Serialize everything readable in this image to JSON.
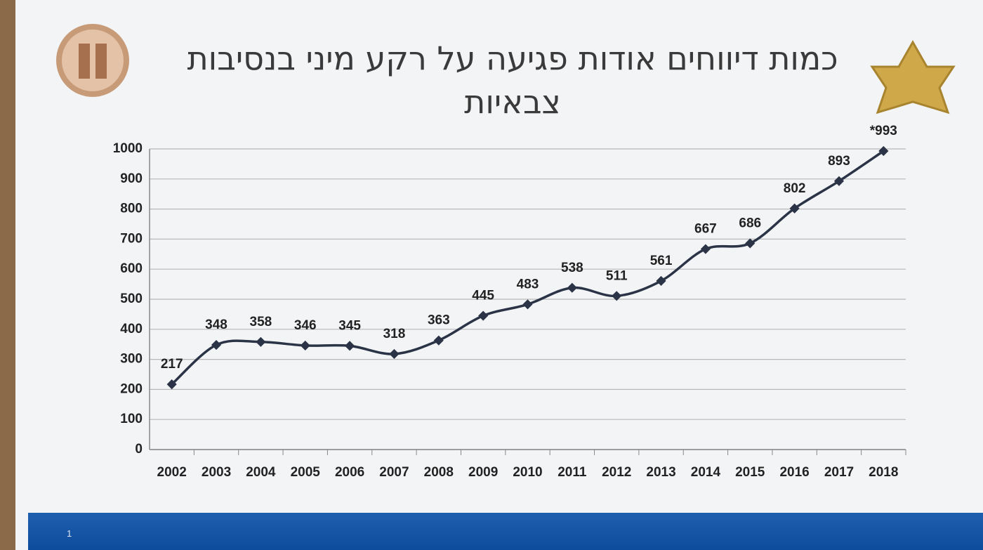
{
  "chart_data": {
    "type": "line",
    "title": "כמות דיווחים אודות פגיעה על רקע מיני בנסיבות צבאיות",
    "categories": [
      "2002",
      "2003",
      "2004",
      "2005",
      "2006",
      "2007",
      "2008",
      "2009",
      "2010",
      "2011",
      "2012",
      "2013",
      "2014",
      "2015",
      "2016",
      "2017",
      "2018"
    ],
    "series": [
      {
        "color": "#2b3446",
        "values": [
          217,
          348,
          358,
          346,
          345,
          318,
          363,
          445,
          483,
          538,
          511,
          561,
          667,
          686,
          802,
          893,
          993
        ],
        "value_labels": [
          "217",
          "348",
          "358",
          "346",
          "345",
          "318",
          "363",
          "445",
          "483",
          "538",
          "511",
          "561",
          "667",
          "686",
          "802",
          "893",
          "*993"
        ]
      }
    ],
    "ylim": [
      0,
      1000
    ],
    "yticks": [
      0,
      100,
      200,
      300,
      400,
      500,
      600,
      700,
      800,
      900,
      1000
    ],
    "grid": true
  },
  "footer": {
    "page_number": "1"
  }
}
